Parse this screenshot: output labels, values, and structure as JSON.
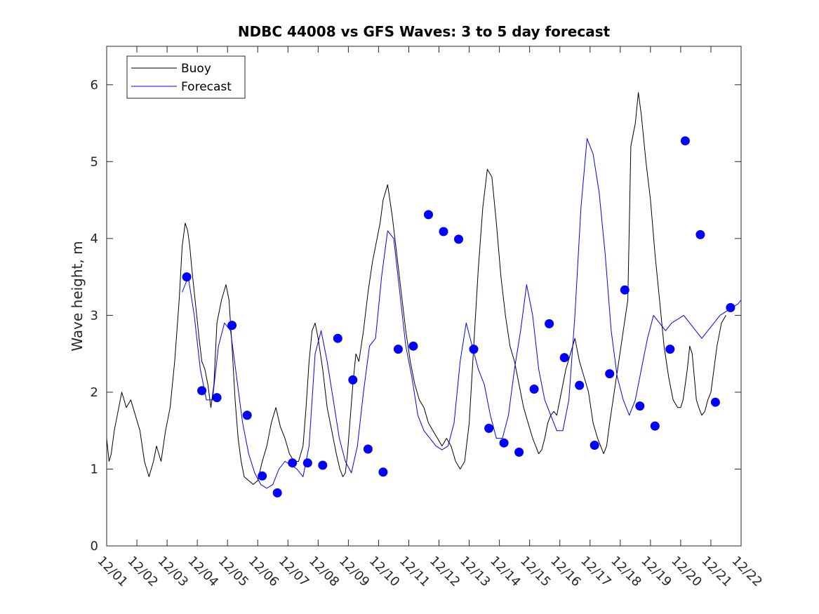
{
  "chart_data": {
    "type": "line",
    "title": "NDBC 44008 vs GFS Waves: 3 to 5 day forecast",
    "xlabel": "",
    "ylabel": "Wave height, m",
    "xlim": [
      0,
      21
    ],
    "ylim": [
      0,
      6.5
    ],
    "x_tick_values": [
      0,
      1,
      2,
      3,
      4,
      5,
      6,
      7,
      8,
      9,
      10,
      11,
      12,
      13,
      14,
      15,
      16,
      17,
      18,
      19,
      20,
      21
    ],
    "x_tick_labels": [
      "12/01",
      "12/02",
      "12/03",
      "12/04",
      "12/05",
      "12/06",
      "12/07",
      "12/08",
      "12/09",
      "12/10",
      "12/11",
      "12/12",
      "12/13",
      "12/14",
      "12/15",
      "12/16",
      "12/17",
      "12/18",
      "12/19",
      "12/20",
      "12/21",
      "12/22"
    ],
    "y_tick_values": [
      0,
      1,
      2,
      3,
      4,
      5,
      6
    ],
    "y_tick_labels": [
      "0",
      "1",
      "2",
      "3",
      "4",
      "5",
      "6"
    ],
    "legend": {
      "position": "top-left",
      "entries": [
        {
          "label": "Buoy",
          "color": "#000000"
        },
        {
          "label": "Forecast",
          "color": "#0000ff"
        }
      ]
    },
    "colors": {
      "buoy": "#000000",
      "forecast": "#0000ff",
      "markers": "#0000ff"
    },
    "series": [
      {
        "name": "Buoy",
        "x": [
          0,
          0.08,
          0.15,
          0.25,
          0.35,
          0.5,
          0.65,
          0.8,
          0.95,
          1.1,
          1.25,
          1.4,
          1.55,
          1.65,
          1.8,
          1.95,
          2.1,
          2.25,
          2.4,
          2.5,
          2.6,
          2.68,
          2.75,
          2.82,
          2.9,
          2.98,
          3.06,
          3.15,
          3.25,
          3.35,
          3.45,
          3.55,
          3.65,
          3.8,
          3.95,
          4.05,
          4.15,
          4.25,
          4.35,
          4.45,
          4.55,
          4.7,
          4.85,
          5.0,
          5.15,
          5.3,
          5.45,
          5.6,
          5.75,
          5.9,
          6.05,
          6.2,
          6.35,
          6.5,
          6.6,
          6.7,
          6.8,
          6.9,
          7.0,
          7.15,
          7.3,
          7.45,
          7.6,
          7.72,
          7.82,
          7.9,
          7.97,
          8.05,
          8.15,
          8.25,
          8.35,
          8.5,
          8.65,
          8.8,
          8.95,
          9.05,
          9.15,
          9.3,
          9.45,
          9.6,
          9.75,
          9.9,
          10.05,
          10.2,
          10.35,
          10.5,
          10.65,
          10.8,
          10.95,
          11.1,
          11.25,
          11.4,
          11.55,
          11.7,
          11.85,
          12.0,
          12.15,
          12.3,
          12.45,
          12.6,
          12.75,
          12.9,
          13.05,
          13.2,
          13.35,
          13.5,
          13.65,
          13.8,
          13.95,
          14.1,
          14.2,
          14.3,
          14.4,
          14.5,
          14.6,
          14.7,
          14.8,
          14.9,
          15.05,
          15.2,
          15.35,
          15.5,
          15.65,
          15.8,
          15.95,
          16.1,
          16.25,
          16.35,
          16.45,
          16.55,
          16.65,
          16.8,
          16.95,
          17.1,
          17.25,
          17.35,
          17.5,
          17.6,
          17.7,
          17.85,
          18.0,
          18.15,
          18.3,
          18.45,
          18.6,
          18.75,
          18.9,
          19.0,
          19.08,
          19.15,
          19.22,
          19.3,
          19.38,
          19.45,
          19.52,
          19.6,
          19.7,
          19.8,
          19.9,
          20.0,
          20.1,
          20.2,
          20.35,
          20.5
        ],
        "y": [
          1.4,
          1.1,
          1.2,
          1.5,
          1.7,
          2.0,
          1.8,
          1.9,
          1.7,
          1.5,
          1.1,
          0.9,
          1.1,
          1.3,
          1.1,
          1.5,
          1.8,
          2.4,
          3.2,
          3.9,
          4.2,
          4.1,
          3.9,
          3.6,
          3.3,
          3.0,
          2.7,
          2.4,
          2.3,
          2.1,
          1.8,
          2.1,
          2.9,
          3.2,
          3.4,
          3.2,
          2.6,
          1.9,
          1.4,
          1.1,
          0.9,
          0.85,
          0.8,
          0.85,
          1.1,
          1.3,
          1.6,
          1.8,
          1.55,
          1.4,
          1.2,
          1.1,
          1.1,
          1.3,
          1.8,
          2.4,
          2.8,
          2.9,
          2.7,
          2.3,
          1.8,
          1.5,
          1.2,
          1.0,
          0.9,
          0.95,
          1.2,
          1.6,
          2.1,
          2.5,
          2.4,
          2.8,
          3.3,
          3.7,
          4.0,
          4.2,
          4.5,
          4.7,
          4.3,
          3.8,
          3.3,
          2.8,
          2.4,
          2.1,
          1.9,
          1.8,
          1.6,
          1.5,
          1.4,
          1.3,
          1.4,
          1.3,
          1.1,
          1.0,
          1.1,
          1.6,
          2.6,
          3.6,
          4.4,
          4.9,
          4.8,
          4.2,
          3.5,
          3.0,
          2.6,
          2.4,
          2.1,
          1.8,
          1.6,
          1.4,
          1.3,
          1.2,
          1.25,
          1.4,
          1.6,
          1.7,
          1.75,
          1.7,
          2.0,
          2.3,
          2.5,
          2.7,
          2.4,
          2.2,
          2.0,
          1.6,
          1.4,
          1.3,
          1.2,
          1.3,
          1.6,
          2.0,
          2.4,
          2.8,
          3.2,
          5.2,
          5.5,
          5.9,
          5.6,
          5.0,
          4.5,
          3.8,
          3.2,
          2.6,
          2.2,
          1.9,
          1.8,
          1.8,
          1.9,
          2.1,
          2.3,
          2.6,
          2.5,
          2.2,
          1.9,
          1.8,
          1.7,
          1.75,
          1.9,
          2.0,
          2.3,
          2.6,
          2.9,
          3.0
        ]
      },
      {
        "name": "Forecast",
        "x": [
          2.5,
          2.7,
          2.9,
          3.1,
          3.3,
          3.5,
          3.7,
          3.9,
          4.1,
          4.3,
          4.5,
          4.7,
          4.9,
          5.1,
          5.3,
          5.5,
          5.7,
          5.9,
          6.1,
          6.3,
          6.5,
          6.7,
          6.9,
          7.1,
          7.3,
          7.5,
          7.7,
          7.9,
          8.1,
          8.3,
          8.5,
          8.7,
          8.9,
          9.1,
          9.3,
          9.5,
          9.7,
          9.9,
          10.1,
          10.3,
          10.5,
          10.7,
          10.9,
          11.1,
          11.3,
          11.5,
          11.7,
          11.9,
          12.1,
          12.3,
          12.5,
          12.7,
          12.9,
          13.1,
          13.3,
          13.5,
          13.7,
          13.9,
          14.1,
          14.3,
          14.5,
          14.7,
          14.9,
          15.1,
          15.3,
          15.5,
          15.7,
          15.9,
          16.1,
          16.3,
          16.5,
          16.7,
          16.9,
          17.1,
          17.3,
          17.5,
          17.7,
          17.9,
          18.1,
          18.3,
          18.5,
          18.7,
          18.9,
          19.1,
          19.3,
          19.5,
          19.7,
          19.9,
          20.1,
          20.3,
          20.5,
          20.7,
          20.9,
          21.0
        ],
        "y": [
          3.3,
          3.5,
          3.0,
          2.3,
          1.9,
          1.9,
          2.6,
          2.9,
          2.8,
          2.2,
          1.6,
          1.2,
          0.95,
          0.8,
          0.75,
          0.8,
          1.0,
          1.1,
          1.05,
          1.0,
          0.9,
          1.3,
          2.5,
          2.8,
          2.4,
          1.9,
          1.4,
          1.1,
          0.95,
          1.3,
          2.0,
          2.6,
          2.7,
          3.5,
          4.1,
          4.0,
          3.3,
          2.6,
          2.2,
          1.7,
          1.5,
          1.4,
          1.3,
          1.25,
          1.3,
          1.6,
          2.4,
          2.9,
          2.6,
          2.3,
          2.1,
          1.7,
          1.4,
          1.4,
          1.7,
          2.3,
          2.8,
          3.4,
          3.0,
          2.3,
          1.9,
          1.7,
          1.5,
          1.5,
          1.9,
          3.0,
          4.4,
          5.3,
          5.1,
          4.6,
          3.8,
          2.8,
          2.2,
          1.9,
          1.7,
          1.9,
          2.3,
          2.7,
          3.0,
          2.9,
          2.8,
          2.9,
          2.95,
          3.0,
          2.9,
          2.8,
          2.7,
          2.8,
          2.9,
          3.0,
          3.05,
          3.1,
          3.15,
          3.2
        ]
      }
    ],
    "forecast_markers": {
      "x": [
        2.65,
        3.15,
        3.65,
        4.15,
        4.65,
        5.15,
        5.65,
        6.15,
        6.65,
        7.15,
        7.65,
        8.15,
        8.65,
        9.15,
        9.65,
        10.15,
        10.65,
        11.15,
        11.65,
        12.15,
        12.65,
        13.15,
        13.65,
        14.15,
        14.65,
        15.15,
        15.65,
        16.15,
        16.65,
        17.15,
        17.65,
        18.15,
        18.65,
        19.15,
        19.65,
        20.15,
        20.65
      ],
      "y": [
        3.5,
        2.02,
        1.93,
        2.87,
        1.7,
        0.91,
        0.69,
        1.08,
        1.08,
        1.05,
        2.7,
        2.16,
        1.26,
        0.96,
        2.56,
        2.6,
        4.31,
        4.09,
        3.99,
        2.56,
        1.53,
        1.34,
        1.22,
        2.04,
        2.89,
        2.45,
        2.09,
        1.31,
        2.24,
        3.33,
        1.82,
        1.56,
        2.56,
        5.27,
        4.05,
        1.87,
        3.1
      ]
    }
  }
}
